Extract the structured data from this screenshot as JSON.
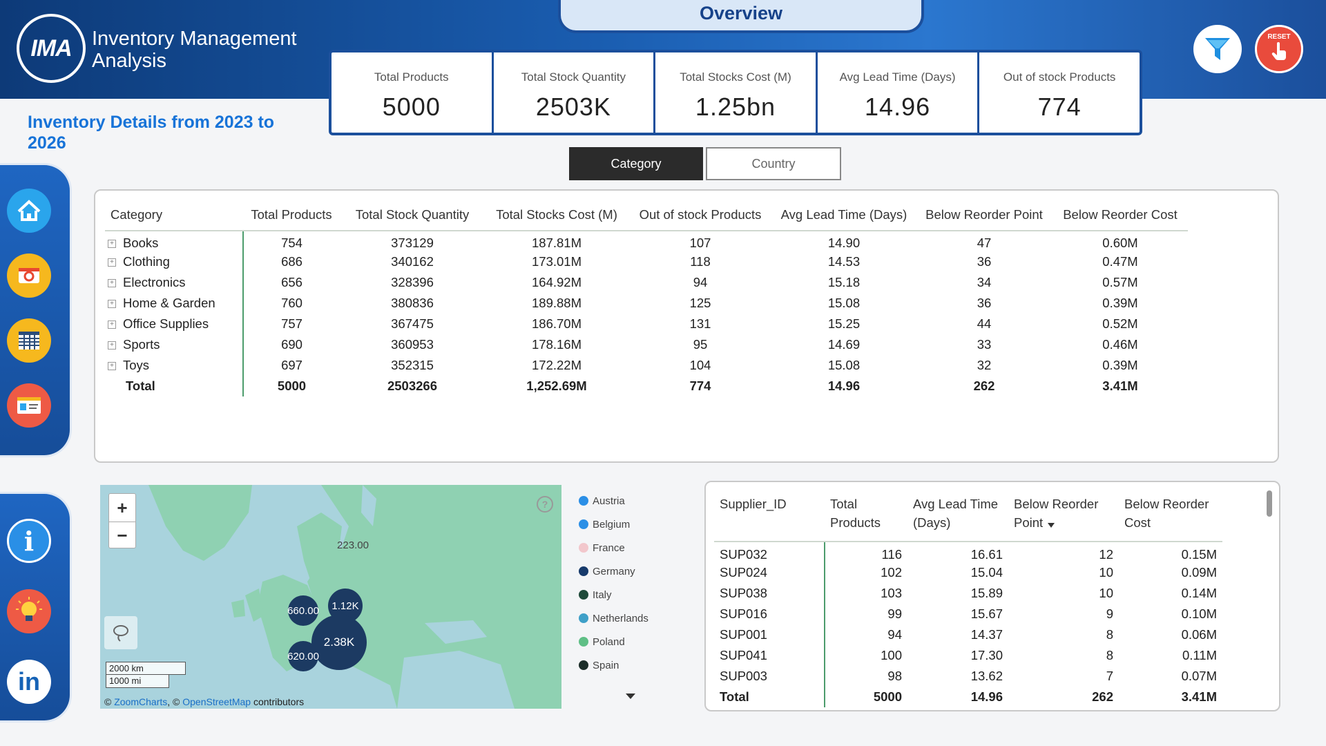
{
  "header": {
    "logo_text": "IMA",
    "app_title": "Inventory Management Analysis",
    "overview_tab": "Overview",
    "reset_label": "RESET",
    "filter_icon": "funnel-icon",
    "reset_icon": "hand-pointer-icon"
  },
  "subtitle": "Inventory Details from 2023 to 2026",
  "kpis": [
    {
      "label": "Total Products",
      "value": "5000"
    },
    {
      "label": "Total Stock Quantity",
      "value": "2503K"
    },
    {
      "label": "Total Stocks Cost (M)",
      "value": "1.25bn"
    },
    {
      "label": "Avg Lead Time (Days)",
      "value": "14.96"
    },
    {
      "label": "Out of stock Products",
      "value": "774"
    }
  ],
  "toggle": {
    "category": "Category",
    "country": "Country",
    "selected": "Category"
  },
  "main_table": {
    "headers": [
      "Category",
      "Total Products",
      "Total Stock Quantity",
      "Total Stocks Cost (M)",
      "Out of stock Products",
      "Avg Lead Time (Days)",
      "Below Reorder Point",
      "Below Reorder Cost"
    ],
    "rows": [
      [
        "Books",
        "754",
        "373129",
        "187.81M",
        "107",
        "14.90",
        "47",
        "0.60M"
      ],
      [
        "Clothing",
        "686",
        "340162",
        "173.01M",
        "118",
        "14.53",
        "36",
        "0.47M"
      ],
      [
        "Electronics",
        "656",
        "328396",
        "164.92M",
        "94",
        "15.18",
        "34",
        "0.57M"
      ],
      [
        "Home & Garden",
        "760",
        "380836",
        "189.88M",
        "125",
        "15.08",
        "36",
        "0.39M"
      ],
      [
        "Office Supplies",
        "757",
        "367475",
        "186.70M",
        "131",
        "15.25",
        "44",
        "0.52M"
      ],
      [
        "Sports",
        "690",
        "360953",
        "178.16M",
        "95",
        "14.69",
        "33",
        "0.46M"
      ],
      [
        "Toys",
        "697",
        "352315",
        "172.22M",
        "104",
        "15.08",
        "32",
        "0.39M"
      ]
    ],
    "total": [
      "Total",
      "5000",
      "2503266",
      "1,252.69M",
      "774",
      "14.96",
      "262",
      "3.41M"
    ]
  },
  "map": {
    "bubbles": [
      "223.00",
      "1.12K",
      "660.00",
      "2.38K",
      "620.00"
    ],
    "scale_km": "2000 km",
    "scale_mi": "1000 mi",
    "attr_zoomcharts": "ZoomCharts",
    "attr_osm": "OpenStreetMap",
    "attr_prefix": "©",
    "attr_sep": ", ©",
    "attr_suffix": "contributors"
  },
  "legend": [
    {
      "name": "Austria",
      "color": "#2b8fe6"
    },
    {
      "name": "Belgium",
      "color": "#2b8fe6"
    },
    {
      "name": "France",
      "color": "#f2c7cc"
    },
    {
      "name": "Germany",
      "color": "#173a6b"
    },
    {
      "name": "Italy",
      "color": "#1f4a3a"
    },
    {
      "name": "Netherlands",
      "color": "#3fa0c8"
    },
    {
      "name": "Poland",
      "color": "#5fbf86"
    },
    {
      "name": "Spain",
      "color": "#1c2e2a"
    }
  ],
  "supplier_table": {
    "headers": [
      "Supplier_ID",
      "Total Products",
      "Avg Lead Time (Days)",
      "Below Reorder Point",
      "Below Reorder Cost"
    ],
    "rows": [
      [
        "SUP032",
        "116",
        "16.61",
        "12",
        "0.15M"
      ],
      [
        "SUP024",
        "102",
        "15.04",
        "10",
        "0.09M"
      ],
      [
        "SUP038",
        "103",
        "15.89",
        "10",
        "0.14M"
      ],
      [
        "SUP016",
        "99",
        "15.67",
        "9",
        "0.10M"
      ],
      [
        "SUP001",
        "94",
        "14.37",
        "8",
        "0.06M"
      ],
      [
        "SUP041",
        "100",
        "17.30",
        "8",
        "0.11M"
      ],
      [
        "SUP003",
        "98",
        "13.62",
        "7",
        "0.07M"
      ]
    ],
    "total": [
      "Total",
      "5000",
      "14.96",
      "262",
      "3.41M"
    ]
  },
  "nav": {
    "top": [
      "home-icon",
      "camera-icon",
      "table-icon",
      "id-card-icon"
    ],
    "bottom": [
      "info-icon",
      "lightbulb-icon",
      "linkedin-icon"
    ],
    "linkedin_text": "in",
    "info_text": "i"
  }
}
